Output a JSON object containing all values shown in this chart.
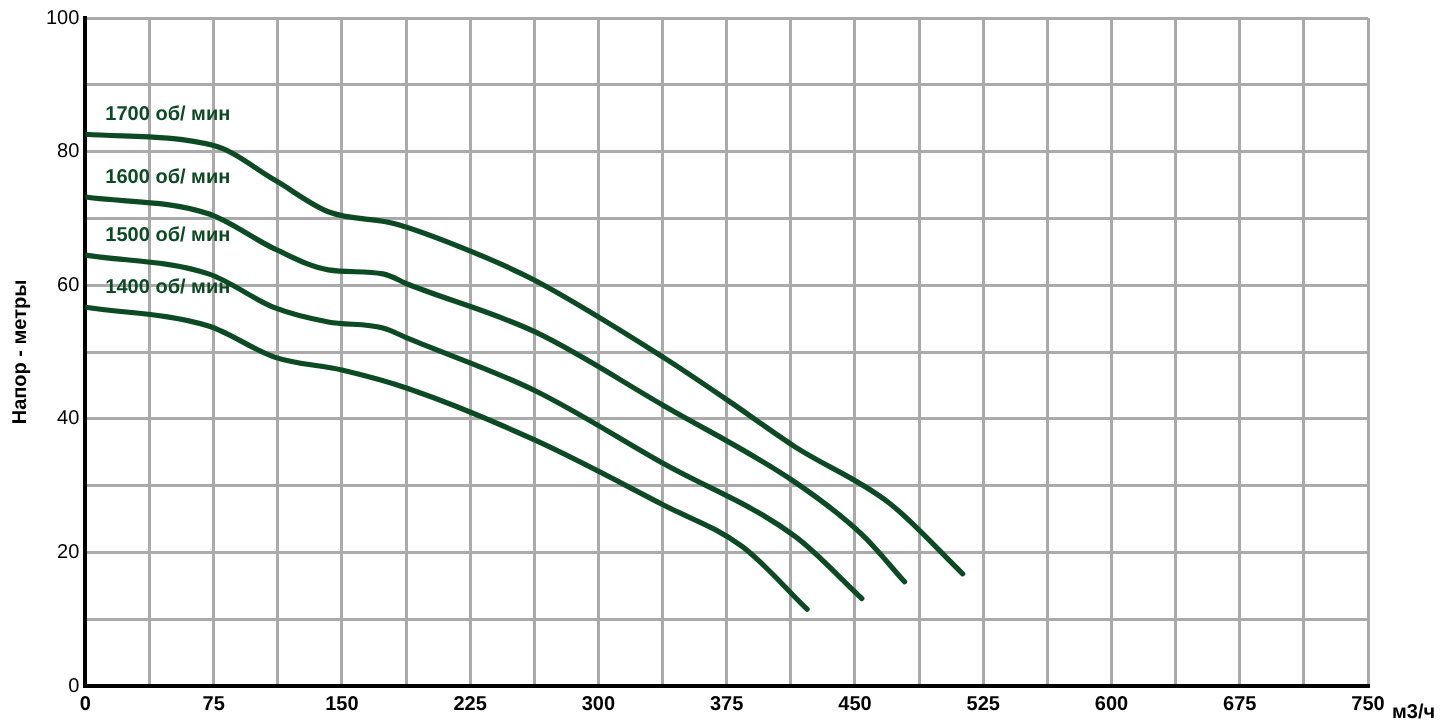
{
  "chart_data": {
    "type": "line",
    "xlabel": "м3/ч",
    "ylabel": "Напор - метры",
    "xlim": [
      0,
      750
    ],
    "ylim": [
      0,
      100
    ],
    "xticks": [
      0,
      {
        "value": 37.5,
        "label": null
      },
      75,
      {
        "value": 112.5,
        "label": null
      },
      150,
      {
        "value": 187.5,
        "label": null
      },
      225,
      {
        "value": 262.5,
        "label": null
      },
      300,
      {
        "value": 337.5,
        "label": null
      },
      375,
      {
        "value": 412.5,
        "label": null
      },
      450,
      {
        "value": 487.5,
        "label": null
      },
      525,
      {
        "value": 562.5,
        "label": null
      },
      600,
      {
        "value": 637.5,
        "label": null
      },
      675,
      {
        "value": 712.5,
        "label": null
      },
      750
    ],
    "yticks": [
      0,
      {
        "value": 10,
        "label": null
      },
      20,
      {
        "value": 30,
        "label": null
      },
      40,
      {
        "value": 50,
        "label": null
      },
      60,
      {
        "value": 70,
        "label": null
      },
      80,
      {
        "value": 90,
        "label": null
      },
      100
    ],
    "grid": true,
    "legend": false,
    "marker": "none",
    "line_style": "solid",
    "series": [
      {
        "name": "1700 об/ мин",
        "color": "#0b4a22",
        "x": [
          0,
          75,
          111,
          142,
          181,
          228,
          263,
          338,
          376,
          415,
          470,
          513
        ],
        "values": [
          82.6,
          80.9,
          75.7,
          71,
          69.2,
          64.8,
          60.7,
          49.2,
          42.7,
          35.8,
          27.4,
          16.8
        ]
      },
      {
        "name": "1600 об/ мин",
        "color": "#0b4a22",
        "x": [
          0,
          72,
          111,
          142,
          174,
          189,
          263,
          338,
          415,
          454,
          479
        ],
        "values": [
          73.2,
          70.7,
          65.4,
          62.3,
          61.7,
          60.1,
          53,
          42,
          30.5,
          22.7,
          15.6
        ]
      },
      {
        "name": "1500 об/ мин",
        "color": "#0b4a22",
        "x": [
          0,
          72,
          111,
          142,
          174,
          189,
          263,
          338,
          415,
          454
        ],
        "values": [
          64.5,
          61.7,
          56.6,
          54.5,
          53.6,
          52,
          44.2,
          33.3,
          22.4,
          13.1
        ]
      },
      {
        "name": "1400 об/ мин",
        "color": "#0b4a22",
        "x": [
          0,
          72,
          111,
          150,
          189,
          263,
          338,
          384,
          422
        ],
        "values": [
          56.7,
          53.9,
          49.2,
          47.3,
          44.5,
          36.8,
          27.1,
          20.9,
          11.5
        ]
      }
    ]
  }
}
